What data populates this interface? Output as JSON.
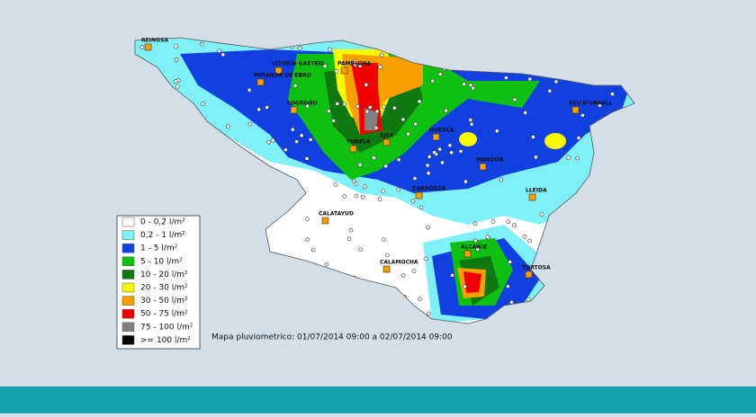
{
  "map": {
    "caption": "Mapa pluviometrico: 01/07/2014 09:00 a 02/07/2014 09:00",
    "cities": [
      "REINOSA",
      "VITORIA GASTEIZ",
      "MIRANDA DE EBRO",
      "PAMPLONA",
      "LOGROÑO",
      "TUDELA",
      "EJEA",
      "HUESCA",
      "MONZÓN",
      "SEU D'URGELL",
      "ZARAGOZA",
      "LLEIDA",
      "CALATAYUD",
      "ALCAÑIZ",
      "CALAMOCHA",
      "TORTOSA"
    ],
    "legend": [
      {
        "label": "0 - 0,2 l/m²",
        "color": "#ffffff"
      },
      {
        "label": "0,2 - 1 l/m²",
        "color": "#80f0f8"
      },
      {
        "label": "1 - 5 l/m²",
        "color": "#1040e0"
      },
      {
        "label": "5 - 10 l/m²",
        "color": "#10c010"
      },
      {
        "label": "10 - 20 l/m²",
        "color": "#107810"
      },
      {
        "label": "20 - 30 l/m²",
        "color": "#f8f800"
      },
      {
        "label": "30 - 50 l/m²",
        "color": "#f8a000"
      },
      {
        "label": "50 - 75 l/m²",
        "color": "#f00000"
      },
      {
        "label": "75 - 100 l/m²",
        "color": "#808080"
      },
      {
        "label": ">= 100 l/m²",
        "color": "#000000"
      }
    ]
  }
}
